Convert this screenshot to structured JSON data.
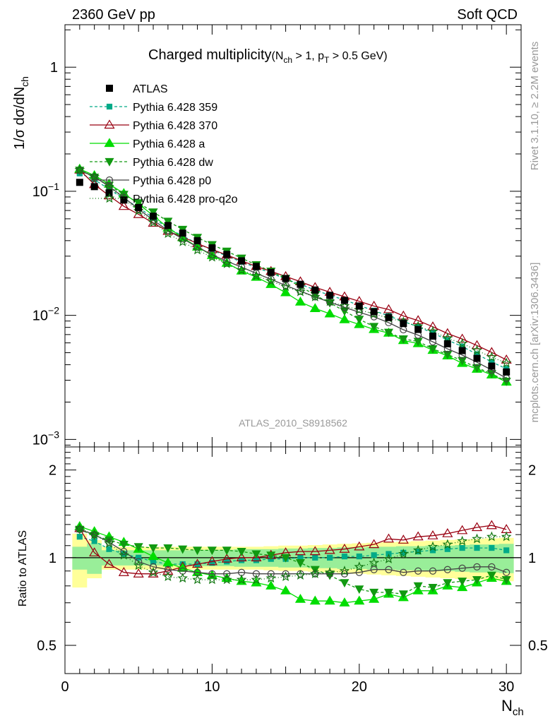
{
  "header": {
    "left": "2360 GeV pp",
    "right": "Soft QCD"
  },
  "side_text": {
    "rivet": "Rivet 3.1.10, ≥ 2.2M events",
    "mcplots": "mcplots.cern.ch [arXiv:1306.3436]"
  },
  "chart_data": {
    "type": "scatter",
    "title_main": "Charged multiplicity",
    "title_cut_open": "(N",
    "title_cut_sub1": "ch",
    "title_cut_mid": " > 1, p",
    "title_cut_sub2": "T",
    "title_cut_end": " > 0.5 GeV)",
    "analysis_label": "ATLAS_2010_S8918562",
    "xlabel_main": "N",
    "xlabel_sub": "ch",
    "ylabel_top_a": "1/σ dσ/dN",
    "ylabel_top_sub": "ch",
    "ylabel_bottom": "Ratio to ATLAS",
    "xlim": [
      0,
      31
    ],
    "ylim_top": [
      0.00087,
      2.2
    ],
    "ylim_bottom": [
      0.4,
      2.4
    ],
    "log_y_top": true,
    "log_y_bottom": true,
    "x_ticks": [
      "0",
      "10",
      "20",
      "30"
    ],
    "x_tick_values": [
      0,
      10,
      20,
      30
    ],
    "y_ticks_top": [
      {
        "v": 1,
        "base": "1",
        "exp": ""
      },
      {
        "v": 0.1,
        "base": "10",
        "exp": "−1"
      },
      {
        "v": 0.01,
        "base": "10",
        "exp": "−2"
      },
      {
        "v": 0.001,
        "base": "10",
        "exp": "−3"
      }
    ],
    "y_ticks_bottom": [
      {
        "v": 2,
        "label": "2"
      },
      {
        "v": 1,
        "label": "1"
      },
      {
        "v": 0.5,
        "label": "0.5"
      }
    ],
    "legend_position": "top-left",
    "x": [
      1,
      2,
      3,
      4,
      5,
      6,
      7,
      8,
      9,
      10,
      11,
      12,
      13,
      14,
      15,
      16,
      17,
      18,
      19,
      20,
      21,
      22,
      23,
      24,
      25,
      26,
      27,
      28,
      29,
      30
    ],
    "data": {
      "name": "ATLAS",
      "values": [
        0.118,
        0.109,
        0.097,
        0.085,
        0.074,
        0.063,
        0.053,
        0.046,
        0.04,
        0.035,
        0.031,
        0.0275,
        0.0248,
        0.0222,
        0.0198,
        0.0178,
        0.016,
        0.0145,
        0.0132,
        0.0119,
        0.0107,
        0.0096,
        0.0086,
        0.0077,
        0.0068,
        0.0059,
        0.0052,
        0.0045,
        0.0039,
        0.0035
      ],
      "band_inner": [
        0.09,
        0.12,
        0.06,
        0.06,
        0.06,
        0.06,
        0.06,
        0.06,
        0.065,
        0.065,
        0.065,
        0.07,
        0.07,
        0.07,
        0.075,
        0.075,
        0.08,
        0.08,
        0.085,
        0.085,
        0.09,
        0.09,
        0.095,
        0.095,
        0.1,
        0.1,
        0.105,
        0.11,
        0.11,
        0.115
      ],
      "band_outer": [
        0.21,
        0.15,
        0.09,
        0.09,
        0.09,
        0.09,
        0.09,
        0.09,
        0.09,
        0.09,
        0.09,
        0.09,
        0.09,
        0.095,
        0.1,
        0.1,
        0.105,
        0.11,
        0.115,
        0.12,
        0.125,
        0.13,
        0.135,
        0.14,
        0.145,
        0.15,
        0.155,
        0.16,
        0.165,
        0.17
      ]
    },
    "series": [
      {
        "name": "Pythia 6.428 359",
        "color": "#00aa88",
        "dash": "4,3",
        "marker": "square",
        "ratio": [
          1.18,
          1.14,
          1.07,
          1.03,
          1.0,
          0.97,
          0.95,
          0.95,
          0.95,
          0.96,
          0.97,
          0.98,
          0.98,
          0.99,
          0.99,
          1.0,
          1.0,
          1.0,
          1.01,
          1.01,
          1.02,
          1.03,
          1.04,
          1.05,
          1.06,
          1.07,
          1.08,
          1.08,
          1.08,
          1.06
        ]
      },
      {
        "name": "Pythia 6.428 370",
        "color": "#990011",
        "dash": "",
        "marker": "triangle-up-open",
        "ratio": [
          1.26,
          1.04,
          0.95,
          0.89,
          0.88,
          0.88,
          0.9,
          0.93,
          0.95,
          0.97,
          0.99,
          1.0,
          1.0,
          1.02,
          1.04,
          1.05,
          1.05,
          1.06,
          1.07,
          1.09,
          1.11,
          1.16,
          1.15,
          1.18,
          1.19,
          1.21,
          1.24,
          1.27,
          1.29,
          1.25
        ]
      },
      {
        "name": "Pythia 6.428 a",
        "color": "#00dd00",
        "dash": "",
        "marker": "triangle-up",
        "ratio": [
          1.28,
          1.23,
          1.18,
          1.13,
          1.07,
          1.01,
          0.96,
          0.92,
          0.89,
          0.87,
          0.85,
          0.83,
          0.82,
          0.8,
          0.77,
          0.72,
          0.71,
          0.71,
          0.7,
          0.71,
          0.72,
          0.75,
          0.73,
          0.77,
          0.77,
          0.8,
          0.79,
          0.82,
          0.85,
          0.83
        ]
      },
      {
        "name": "Pythia 6.428 dw",
        "color": "#119911",
        "dash": "4,3",
        "marker": "triangle-down",
        "ratio": [
          1.25,
          1.19,
          1.15,
          1.11,
          1.09,
          1.08,
          1.08,
          1.07,
          1.06,
          1.06,
          1.06,
          1.05,
          1.03,
          1.02,
          1.0,
          0.96,
          0.91,
          0.87,
          0.82,
          0.78,
          0.76,
          0.76,
          0.75,
          0.8,
          0.79,
          0.82,
          0.83,
          0.84,
          0.87,
          0.84
        ]
      },
      {
        "name": "Pythia 6.428 p0",
        "color": "#444444",
        "dash": "",
        "marker": "circle-open",
        "ratio": [
          1.25,
          1.2,
          1.13,
          1.05,
          0.97,
          0.93,
          0.91,
          0.9,
          0.89,
          0.88,
          0.88,
          0.89,
          0.88,
          0.88,
          0.88,
          0.88,
          0.88,
          0.88,
          0.88,
          0.89,
          0.91,
          0.91,
          0.89,
          0.9,
          0.9,
          0.91,
          0.92,
          0.93,
          0.93,
          0.89
        ]
      },
      {
        "name": "Pythia 6.428 pro-q2o",
        "color": "#117711",
        "dash": "1,3",
        "marker": "star-open",
        "ratio": [
          1.26,
          1.2,
          1.12,
          1.02,
          0.94,
          0.89,
          0.86,
          0.85,
          0.84,
          0.84,
          0.84,
          0.84,
          0.84,
          0.85,
          0.86,
          0.87,
          0.88,
          0.89,
          0.9,
          0.93,
          0.96,
          0.99,
          1.03,
          1.06,
          1.09,
          1.11,
          1.14,
          1.16,
          1.18,
          1.18
        ]
      }
    ]
  }
}
